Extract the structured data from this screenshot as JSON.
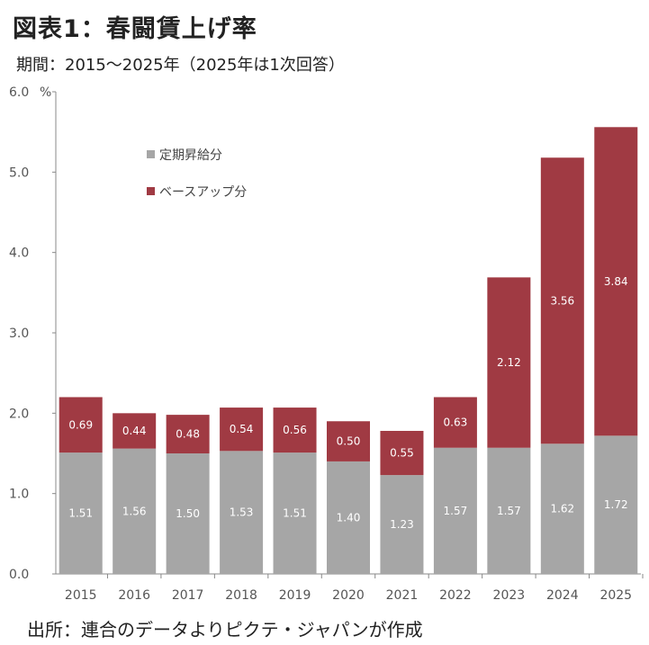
{
  "header": {
    "title": "図表1：春闘賃上げ率",
    "subtitle": "期間：2015～2025年（2025年は1次回答）"
  },
  "footer": {
    "source": "出所：連合のデータよりピクテ・ジャパンが作成"
  },
  "colors": {
    "base": "#a6a6a6",
    "baseup": "#a03a43",
    "axis": "#888888"
  },
  "chart_data": {
    "type": "bar",
    "stacked": true,
    "categories": [
      "2015",
      "2016",
      "2017",
      "2018",
      "2019",
      "2020",
      "2021",
      "2022",
      "2023",
      "2024",
      "2025"
    ],
    "series": [
      {
        "name": "定期昇給分",
        "values": [
          1.51,
          1.56,
          1.5,
          1.53,
          1.51,
          1.4,
          1.23,
          1.57,
          1.57,
          1.62,
          1.72
        ]
      },
      {
        "name": "ベースアップ分",
        "values": [
          0.69,
          0.44,
          0.48,
          0.54,
          0.56,
          0.5,
          0.55,
          0.63,
          2.12,
          3.56,
          3.84
        ]
      }
    ],
    "data_labels": [
      [
        "1.51",
        "1.56",
        "1.50",
        "1.53",
        "1.51",
        "1.40",
        "1.23",
        "1.57",
        "1.57",
        "1.62",
        "1.72"
      ],
      [
        "0.69",
        "0.44",
        "0.48",
        "0.54",
        "0.56",
        "0.50",
        "0.55",
        "0.63",
        "2.12",
        "3.56",
        "3.84"
      ]
    ],
    "y_ticks": [
      "0.0",
      "1.0",
      "2.0",
      "3.0",
      "4.0",
      "5.0",
      "6.0"
    ],
    "y_unit": "%",
    "ylim": [
      0,
      6
    ],
    "grid": false,
    "legend_position": "top-left"
  }
}
